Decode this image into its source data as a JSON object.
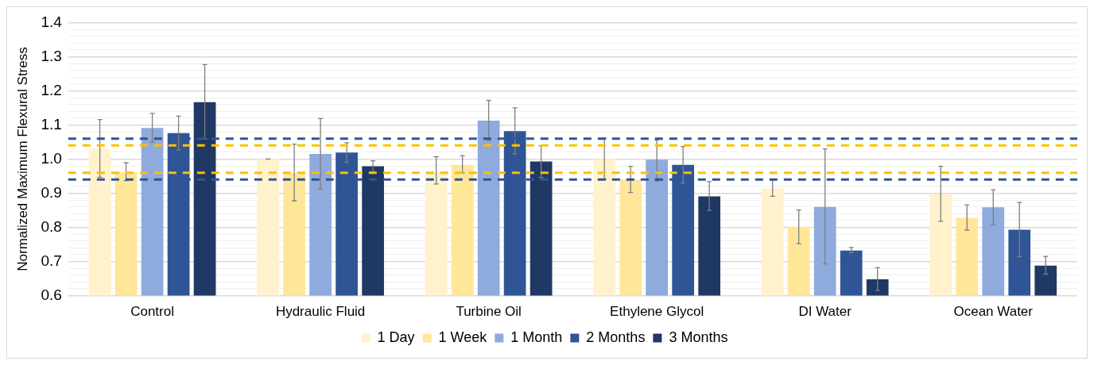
{
  "chart_data": {
    "type": "bar",
    "ylabel": "Normalized Maximum Flexural Stress",
    "categories": [
      "Control",
      "Hydraulic Fluid",
      "Turbine Oil",
      "Ethylene Glycol",
      "DI Water",
      "Ocean Water"
    ],
    "series": [
      {
        "name": "1 Day",
        "color": "#fff2cc",
        "values": [
          1.03,
          1.0,
          0.963,
          1.0,
          0.914,
          0.898
        ],
        "errors": [
          [
            0.947,
            1.116
          ],
          [
            1.0,
            1.0
          ],
          [
            0.927,
            1.007
          ],
          [
            0.941,
            1.061
          ],
          [
            0.891,
            0.939
          ],
          [
            0.818,
            0.979
          ]
        ]
      },
      {
        "name": "1 Week",
        "color": "#ffe699",
        "values": [
          0.962,
          0.959,
          0.983,
          0.94,
          0.802,
          0.828
        ],
        "errors": [
          [
            0.937,
            0.989
          ],
          [
            0.878,
            1.044
          ],
          [
            0.959,
            1.01
          ],
          [
            0.902,
            0.979
          ],
          [
            0.752,
            0.851
          ],
          [
            0.792,
            0.866
          ]
        ]
      },
      {
        "name": "1 Month",
        "color": "#8faadc",
        "values": [
          1.091,
          1.015,
          1.113,
          0.998,
          0.86,
          0.859
        ],
        "errors": [
          [
            1.05,
            1.134
          ],
          [
            0.913,
            1.119
          ],
          [
            1.055,
            1.172
          ],
          [
            0.936,
            1.056
          ],
          [
            0.693,
            1.03
          ],
          [
            0.808,
            0.91
          ]
        ]
      },
      {
        "name": "2 Months",
        "color": "#2f5597",
        "values": [
          1.076,
          1.019,
          1.082,
          0.983,
          0.732,
          0.793
        ],
        "errors": [
          [
            1.026,
            1.126
          ],
          [
            0.991,
            1.048
          ],
          [
            1.015,
            1.15
          ],
          [
            0.93,
            1.037
          ],
          [
            0.726,
            0.741
          ],
          [
            0.714,
            0.873
          ]
        ]
      },
      {
        "name": "3 Months",
        "color": "#203864",
        "values": [
          1.167,
          0.979,
          0.993,
          0.891,
          0.648,
          0.688
        ],
        "errors": [
          [
            1.059,
            1.277
          ],
          [
            0.963,
            0.995
          ],
          [
            0.946,
            1.039
          ],
          [
            0.85,
            0.934
          ],
          [
            0.615,
            0.682
          ],
          [
            0.663,
            0.715
          ]
        ]
      }
    ],
    "ylim": [
      0.6,
      1.4
    ],
    "yticks": [
      {
        "value": 0.6,
        "label": "0.6"
      },
      {
        "value": 0.62,
        "label": null
      },
      {
        "value": 0.64,
        "label": null
      },
      {
        "value": 0.66,
        "label": null
      },
      {
        "value": 0.68,
        "label": null
      },
      {
        "value": 0.7,
        "label": "0.7"
      },
      {
        "value": 0.72,
        "label": null
      },
      {
        "value": 0.74,
        "label": null
      },
      {
        "value": 0.76,
        "label": null
      },
      {
        "value": 0.78,
        "label": null
      },
      {
        "value": 0.8,
        "label": "0.8"
      },
      {
        "value": 0.82,
        "label": null
      },
      {
        "value": 0.84,
        "label": null
      },
      {
        "value": 0.86,
        "label": null
      },
      {
        "value": 0.88,
        "label": null
      },
      {
        "value": 0.9,
        "label": "0.9"
      },
      {
        "value": 0.92,
        "label": null
      },
      {
        "value": 0.98,
        "label": null
      },
      {
        "value": 1.0,
        "label": "1.0"
      },
      {
        "value": 1.02,
        "label": null
      },
      {
        "value": 1.08,
        "label": null
      },
      {
        "value": 1.1,
        "label": "1.1"
      },
      {
        "value": 1.12,
        "label": null
      },
      {
        "value": 1.14,
        "label": null
      },
      {
        "value": 1.16,
        "label": null
      },
      {
        "value": 1.18,
        "label": null
      },
      {
        "value": 1.2,
        "label": "1.2"
      },
      {
        "value": 1.22,
        "label": null
      },
      {
        "value": 1.24,
        "label": null
      },
      {
        "value": 1.26,
        "label": null
      },
      {
        "value": 1.28,
        "label": null
      },
      {
        "value": 1.3,
        "label": "1.3"
      },
      {
        "value": 1.32,
        "label": null
      },
      {
        "value": 1.34,
        "label": null
      },
      {
        "value": 1.36,
        "label": null
      },
      {
        "value": 1.38,
        "label": null
      },
      {
        "value": 1.4,
        "label": "1.4"
      }
    ],
    "ref_lines": [
      {
        "axis": "y",
        "value": 1.06,
        "color": "#2f5597",
        "line_style": "dashed"
      },
      {
        "axis": "y",
        "value": 1.04,
        "color": "#ffc000",
        "line_style": "dashed"
      },
      {
        "axis": "y",
        "value": 0.96,
        "color": "#ffc000",
        "line_style": "dashed"
      },
      {
        "axis": "y",
        "value": 0.94,
        "color": "#2f5597",
        "line_style": "dashed"
      }
    ],
    "grid": "y",
    "legend": "bottom"
  }
}
